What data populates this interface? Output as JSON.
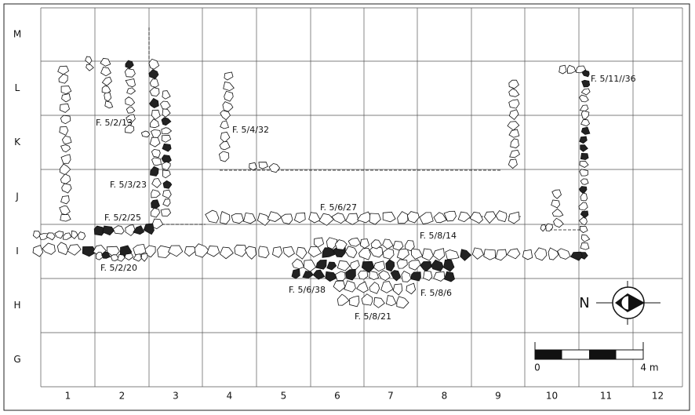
{
  "rows": [
    "M",
    "L",
    "K",
    "J",
    "I",
    "H",
    "G"
  ],
  "columns": [
    "1",
    "2",
    "3",
    "4",
    "5",
    "6",
    "7",
    "8",
    "9",
    "10",
    "11",
    "12"
  ],
  "features": [
    "F. 5/2/13",
    "F. 5/4/32",
    "F. 5/3/23",
    "F. 5/2/25",
    "F. 5/6/27",
    "F. 5/8/14",
    "F. 5/2/20",
    "F. 5/6/38",
    "F. 5/8/6",
    "F. 5/8/21",
    "F. 5/11//36"
  ],
  "scale": {
    "start": "0",
    "end": "4 m"
  },
  "north": "N"
}
